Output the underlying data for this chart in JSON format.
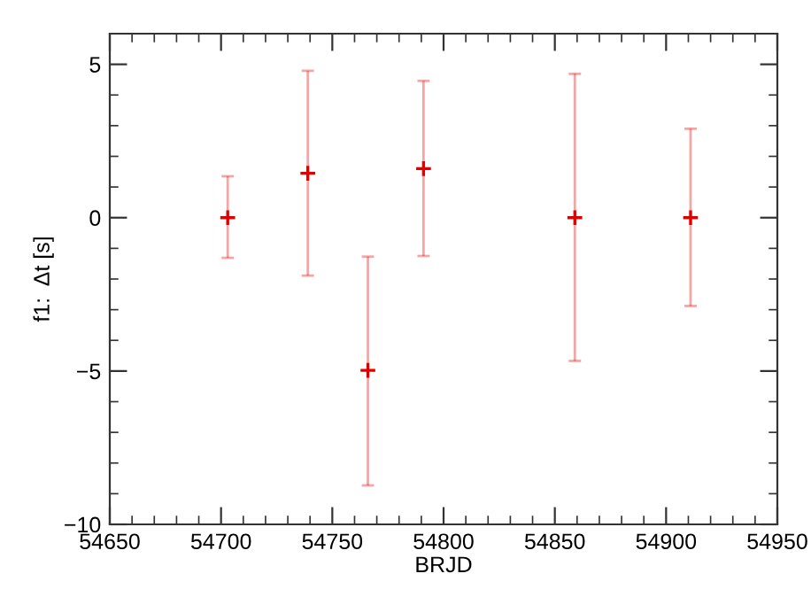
{
  "chart_data": {
    "type": "scatter",
    "xlabel": "BRJD",
    "ylabel": "f1:  Δt [s]",
    "x": [
      54703,
      54739,
      54766,
      54791,
      54859,
      54911
    ],
    "series": [
      {
        "color": "#e00000",
        "values": [
          0,
          1.45,
          -4.98,
          1.6,
          0,
          0
        ],
        "errors": [
          [
            -1.31,
            1.35
          ],
          [
            -1.89,
            4.79
          ],
          [
            -8.73,
            -1.27
          ],
          [
            -1.25,
            4.46
          ],
          [
            -4.67,
            4.69
          ],
          [
            -2.88,
            2.9
          ]
        ]
      }
    ],
    "marker": "cross",
    "grid": false,
    "legend": false,
    "xlim": [
      54650,
      54950
    ],
    "xticks": [
      54650,
      54700,
      54750,
      54800,
      54850,
      54900,
      54950
    ],
    "ylim": [
      -10,
      6
    ],
    "yticks": [
      {
        "value": -10,
        "label": "−10"
      },
      {
        "value": -5,
        "label": "−5"
      },
      0,
      5
    ]
  }
}
